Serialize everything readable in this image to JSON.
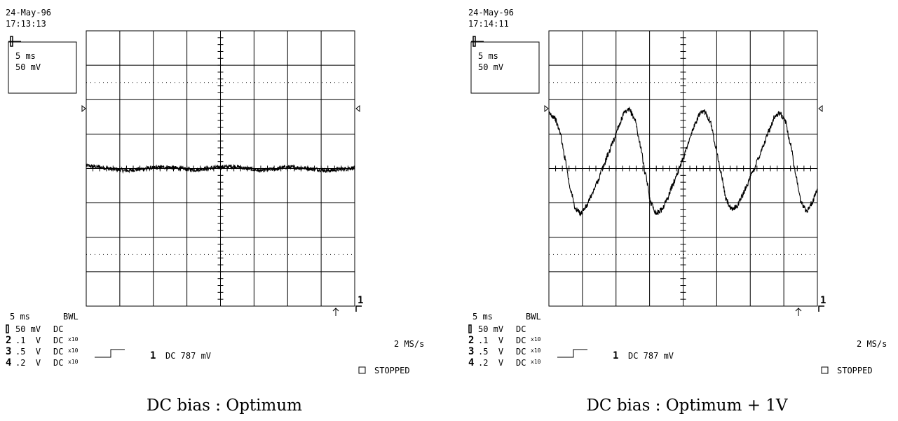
{
  "panels": [
    {
      "date": "24-May-96",
      "time": "17:13:13",
      "box_timebase": "5 ms",
      "box_volts": "50 mV",
      "timebase_label": "5 ms",
      "bwl_label": "BWL",
      "sample_rate": "2 MS/s",
      "trigger_channel": "1",
      "trigger_text": "DC 787 mV",
      "status": "STOPPED",
      "channel_marker": "1",
      "channels": [
        {
          "num": "1",
          "scale": "50 mV",
          "coupling": "DC",
          "probe": ""
        },
        {
          "num": "2",
          "scale": ".1  V",
          "coupling": "DC",
          "probe": "x10"
        },
        {
          "num": "3",
          "scale": ".5  V",
          "coupling": "DC",
          "probe": "x10"
        },
        {
          "num": "4",
          "scale": ".2  V",
          "coupling": "DC",
          "probe": "x10"
        }
      ],
      "caption": "DC bias : Optimum"
    },
    {
      "date": "24-May-96",
      "time": "17:14:11",
      "box_timebase": "5 ms",
      "box_volts": "50 mV",
      "timebase_label": "5 ms",
      "bwl_label": "BWL",
      "sample_rate": "2 MS/s",
      "trigger_channel": "1",
      "trigger_text": "DC 787 mV",
      "status": "STOPPED",
      "channel_marker": "1",
      "channels": [
        {
          "num": "1",
          "scale": "50 mV",
          "coupling": "DC",
          "probe": ""
        },
        {
          "num": "2",
          "scale": ".1  V",
          "coupling": "DC",
          "probe": "x10"
        },
        {
          "num": "3",
          "scale": ".5  V",
          "coupling": "DC",
          "probe": "x10"
        },
        {
          "num": "4",
          "scale": ".2  V",
          "coupling": "DC",
          "probe": "x10"
        }
      ],
      "caption": "DC bias : Optimum + 1V"
    }
  ],
  "chart_data": [
    {
      "type": "line",
      "grid": true,
      "xlim": [
        0,
        50
      ],
      "ylim": [
        -200,
        200
      ],
      "x_unit": "ms",
      "y_unit": "mV",
      "series": [
        {
          "x": [
            0,
            2.5,
            5,
            7.5,
            10,
            12.5,
            15,
            17.5,
            20,
            22.5,
            25,
            27.5,
            30,
            32.5,
            35,
            37.5,
            40,
            42.5,
            45,
            47.5,
            50
          ],
          "y": [
            4,
            2,
            -1,
            -3,
            -1,
            1,
            2,
            0,
            -2,
            0,
            2,
            3,
            0,
            -3,
            -1,
            2,
            1,
            -1,
            -3,
            -1,
            1
          ],
          "noise": 3
        }
      ]
    },
    {
      "type": "line",
      "grid": true,
      "xlim": [
        0,
        50
      ],
      "ylim": [
        -200,
        200
      ],
      "x_unit": "ms",
      "y_unit": "mV",
      "series": [
        {
          "x": [
            0,
            1,
            2,
            3,
            4,
            5,
            6,
            7,
            8,
            9,
            10,
            11,
            12,
            13,
            14,
            15,
            16,
            17,
            18,
            19,
            20,
            21,
            22,
            23,
            24,
            25,
            26,
            27,
            28,
            29,
            30,
            31,
            32,
            33,
            34,
            35,
            36,
            37,
            38,
            39,
            40,
            41,
            42,
            43,
            44,
            45,
            46,
            47,
            48,
            49,
            50
          ],
          "y": [
            80,
            75,
            55,
            15,
            -30,
            -60,
            -65,
            -55,
            -38,
            -20,
            0,
            20,
            40,
            62,
            80,
            85,
            72,
            35,
            -10,
            -50,
            -65,
            -60,
            -45,
            -25,
            -5,
            15,
            38,
            60,
            78,
            83,
            70,
            35,
            -5,
            -45,
            -60,
            -55,
            -40,
            -22,
            -5,
            15,
            35,
            55,
            75,
            80,
            70,
            35,
            -10,
            -50,
            -62,
            -50,
            -30
          ],
          "noise": 4
        }
      ]
    }
  ]
}
